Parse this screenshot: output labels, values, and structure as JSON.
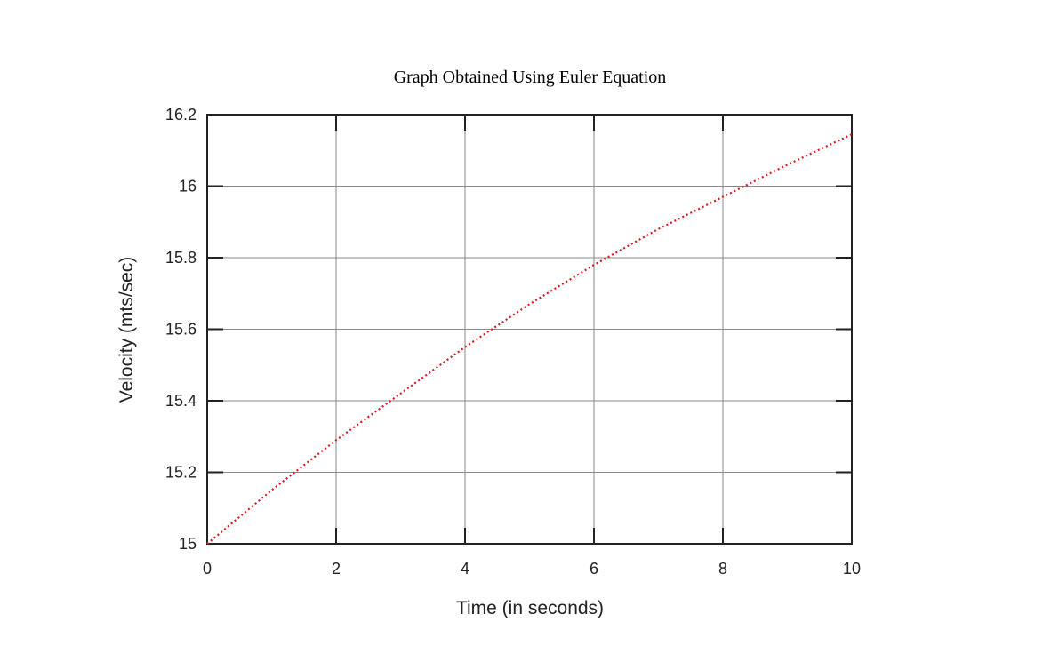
{
  "chart_data": {
    "type": "line",
    "title": "Graph Obtained Using Euler Equation",
    "xlabel": "Time (in seconds)",
    "ylabel": "Velocity (mts/sec)",
    "xlim": [
      0,
      10
    ],
    "ylim": [
      15,
      16.2
    ],
    "xticks": [
      "0",
      "2",
      "4",
      "6",
      "8",
      "10"
    ],
    "yticks": [
      "15",
      "15.2",
      "15.4",
      "15.6",
      "15.8",
      "16",
      "16.2"
    ],
    "grid": true,
    "series": [
      {
        "color": "#e0191f",
        "style": "dotted",
        "x": [
          0,
          1,
          2,
          3,
          4,
          5,
          6,
          7,
          8,
          9,
          10
        ],
        "y": [
          15.0,
          15.15,
          15.29,
          15.42,
          15.55,
          15.67,
          15.78,
          15.88,
          15.97,
          16.06,
          16.145
        ]
      }
    ]
  }
}
